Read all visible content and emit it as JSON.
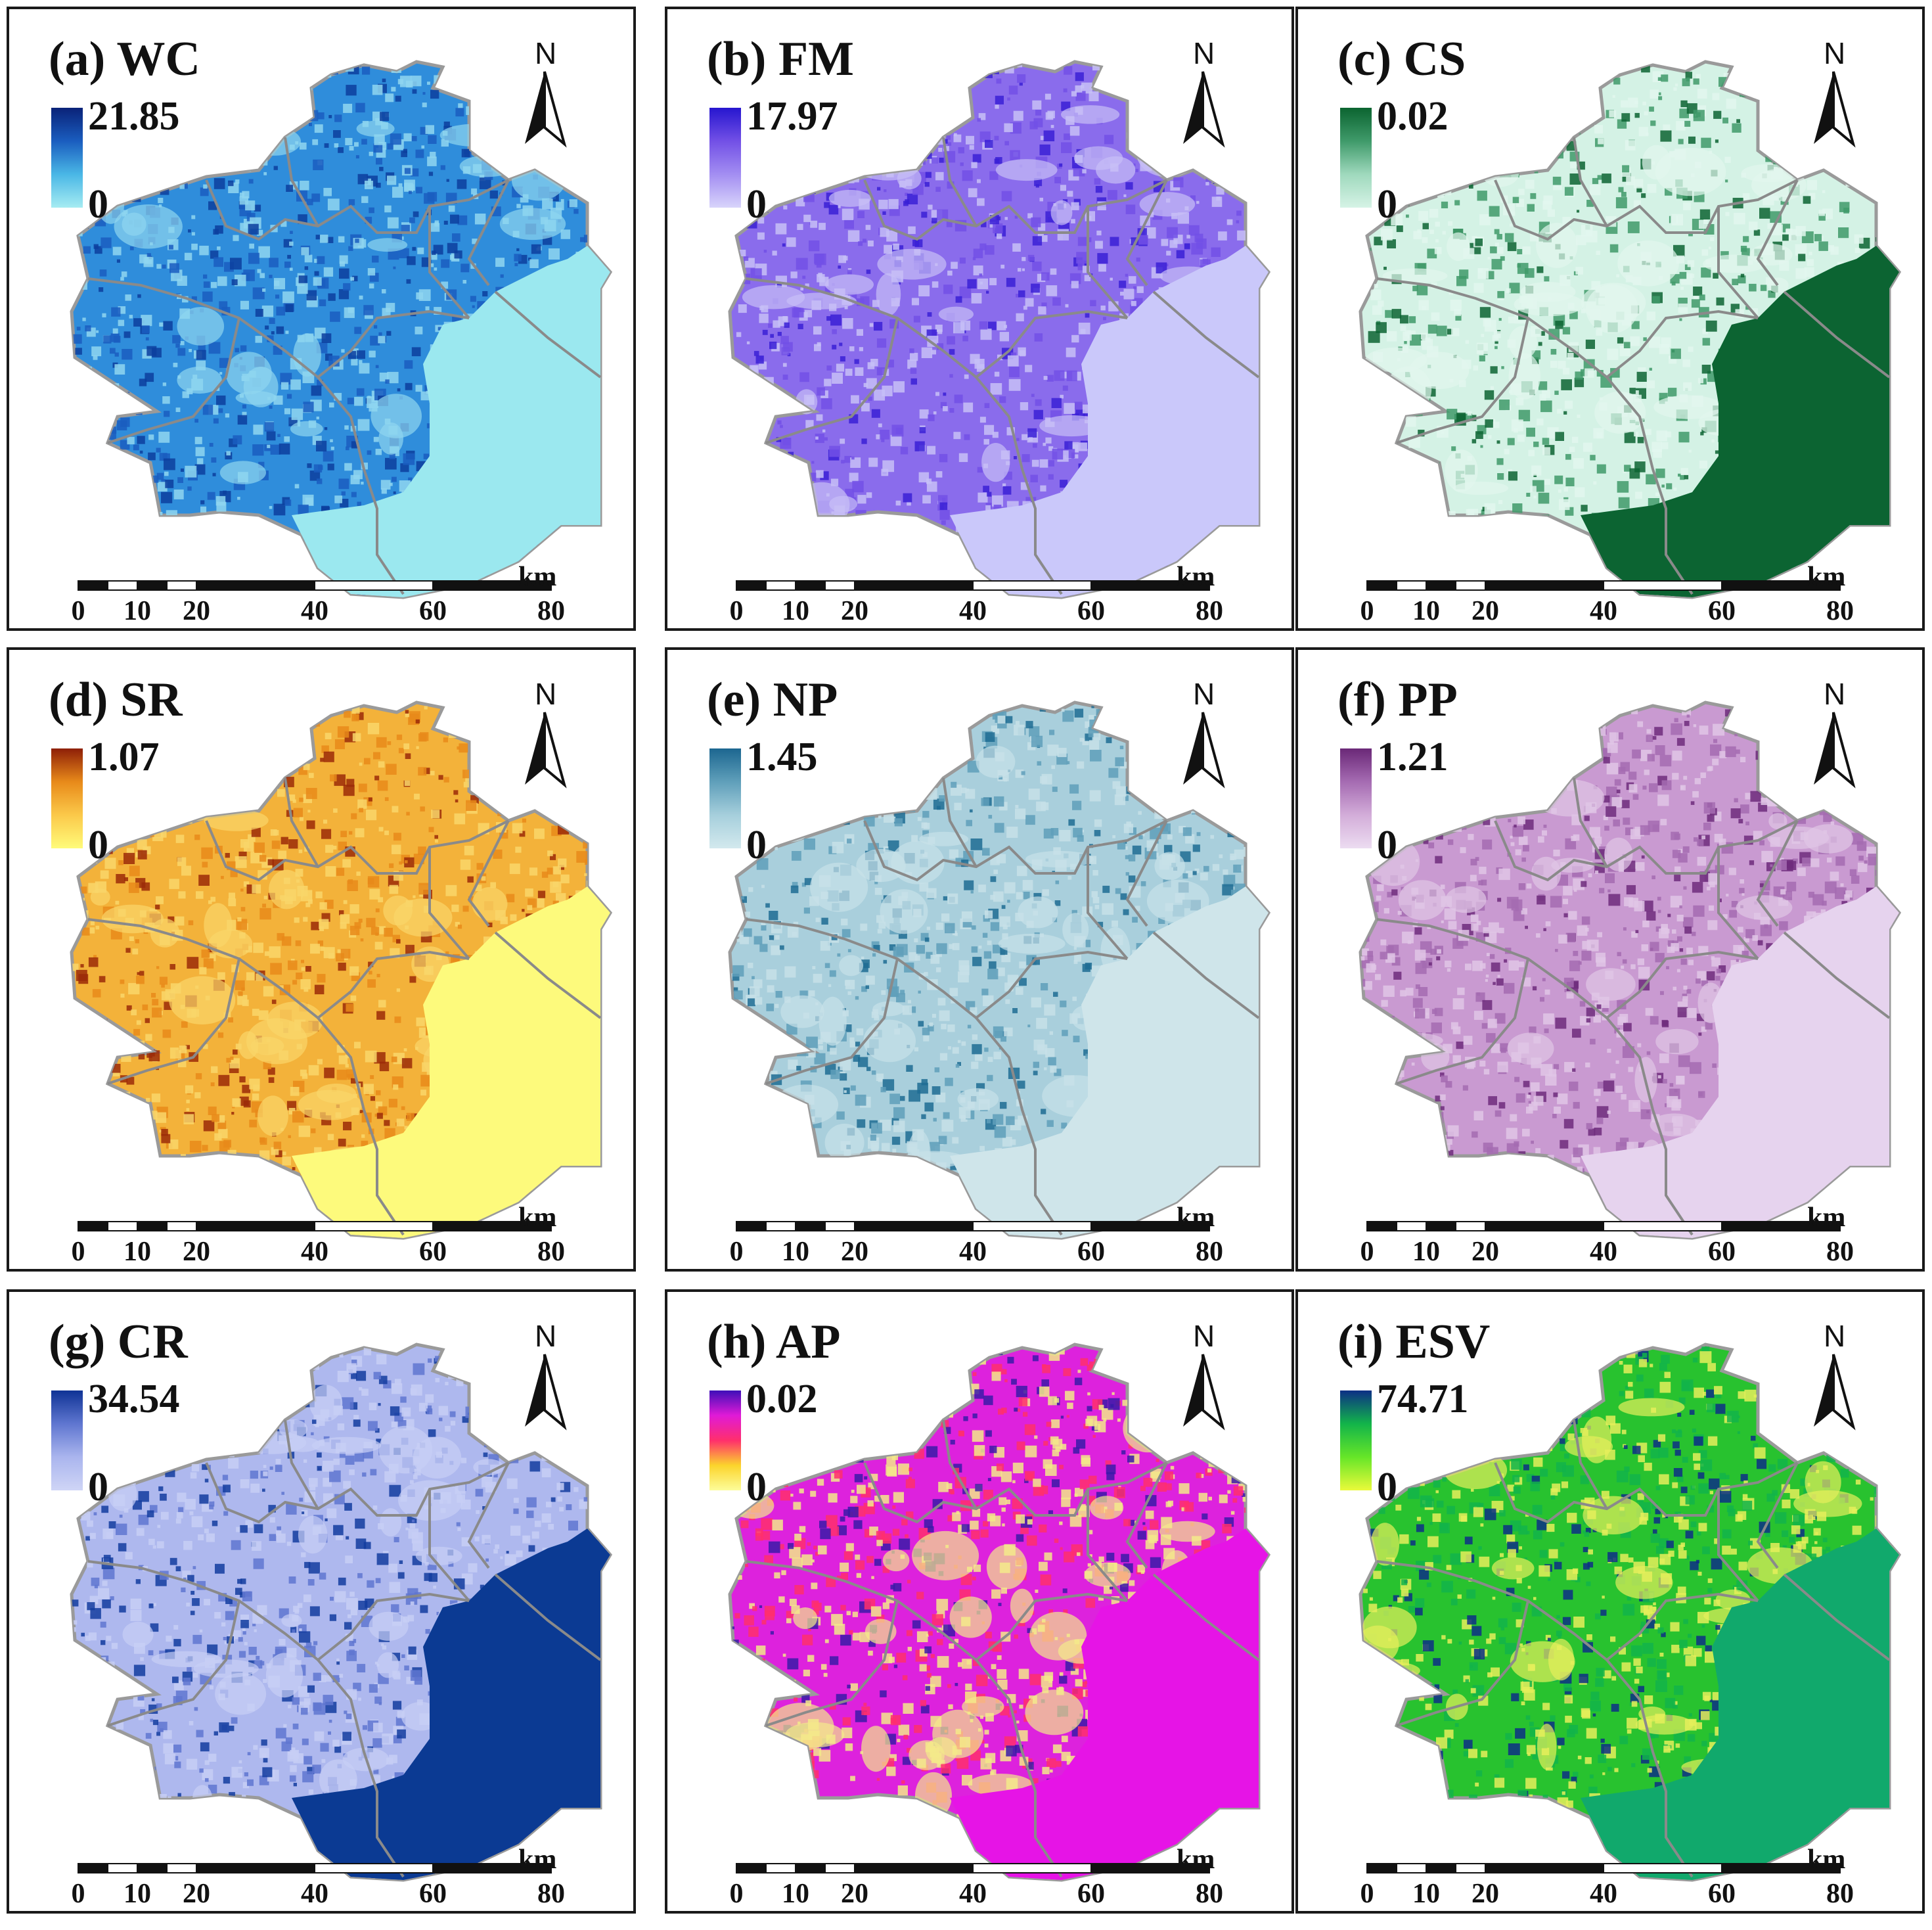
{
  "panels": [
    {
      "id": "a",
      "title": "(a) WC",
      "max": "21.85",
      "min": "0",
      "ramp": [
        "#a6ecf2",
        "#4ab7e6",
        "#1a5dbf",
        "#0a2278"
      ],
      "sea": "#9be8ef",
      "accent": "#0c3e9e",
      "base": "#2f8ddb",
      "light": "#8fd6f0"
    },
    {
      "id": "b",
      "title": "(b) FM",
      "max": "17.97",
      "min": "0",
      "ramp": [
        "#d8d4fb",
        "#a38ef2",
        "#7250e6",
        "#2616cf"
      ],
      "sea": "#cac8fa",
      "accent": "#3a20d6",
      "base": "#8a6cec",
      "light": "#c7bff7"
    },
    {
      "id": "c",
      "title": "(c) CS",
      "max": "0.02",
      "min": "0",
      "ramp": [
        "#d6f3e6",
        "#9fd9bd",
        "#3f9a6a",
        "#0b6430"
      ],
      "sea": "#0c6432",
      "accent": "#0c6432",
      "base": "#d4f2e5",
      "light": "#e2f7ee"
    },
    {
      "id": "d",
      "title": "(d) SR",
      "max": "1.07",
      "min": "0",
      "ramp": [
        "#fffb7a",
        "#fbc94a",
        "#e88a1a",
        "#8e1f07"
      ],
      "sea": "#fdfa7c",
      "accent": "#9b2a08",
      "base": "#f3b23a",
      "light": "#f9d66a"
    },
    {
      "id": "e",
      "title": "(e) NP",
      "max": "1.45",
      "min": "0",
      "ramp": [
        "#d3e9ee",
        "#a6cfdc",
        "#5f9fba",
        "#1c6690"
      ],
      "sea": "#cfe5ea",
      "accent": "#1f6c93",
      "base": "#a9cfdc",
      "light": "#c7e1e8"
    },
    {
      "id": "f",
      "title": "(f) PP",
      "max": "1.21",
      "min": "0",
      "ramp": [
        "#ecdcf1",
        "#d3add9",
        "#a56bb2",
        "#6a2877"
      ],
      "sea": "#e6d3ee",
      "accent": "#6f2c7c",
      "base": "#c99ad1",
      "light": "#e0c6e6"
    },
    {
      "id": "g",
      "title": "(g) CR",
      "max": "34.54",
      "min": "0",
      "ramp": [
        "#cfd5f6",
        "#aab5ee",
        "#5f76d0",
        "#0f3395"
      ],
      "sea": "#0b3a93",
      "accent": "#133c9f",
      "base": "#aeb8ee",
      "light": "#c7cef5"
    },
    {
      "id": "h",
      "title": "(h) AP",
      "max": "0.02",
      "min": "0",
      "ramp": [
        "#fdfd9a",
        "#fbd42c",
        "#ff2f6c",
        "#e01ad7",
        "#3e0fb8"
      ],
      "sea": "#e614e6",
      "accent": "#3a1aa8",
      "base": "#dd22dd",
      "light": "#f3e98a"
    },
    {
      "id": "i",
      "title": "(i) ESV",
      "max": "74.71",
      "min": "0",
      "ramp": [
        "#eafa3a",
        "#66e628",
        "#12b44a",
        "#0c2f86"
      ],
      "sea": "#11a96c",
      "accent": "#0d2f85",
      "base": "#28c22f",
      "light": "#e5ef5b"
    }
  ],
  "scalebar": {
    "unit": "km",
    "ticks": [
      "0",
      "10",
      "20",
      "40",
      "60",
      "80"
    ]
  },
  "north_label": "N"
}
